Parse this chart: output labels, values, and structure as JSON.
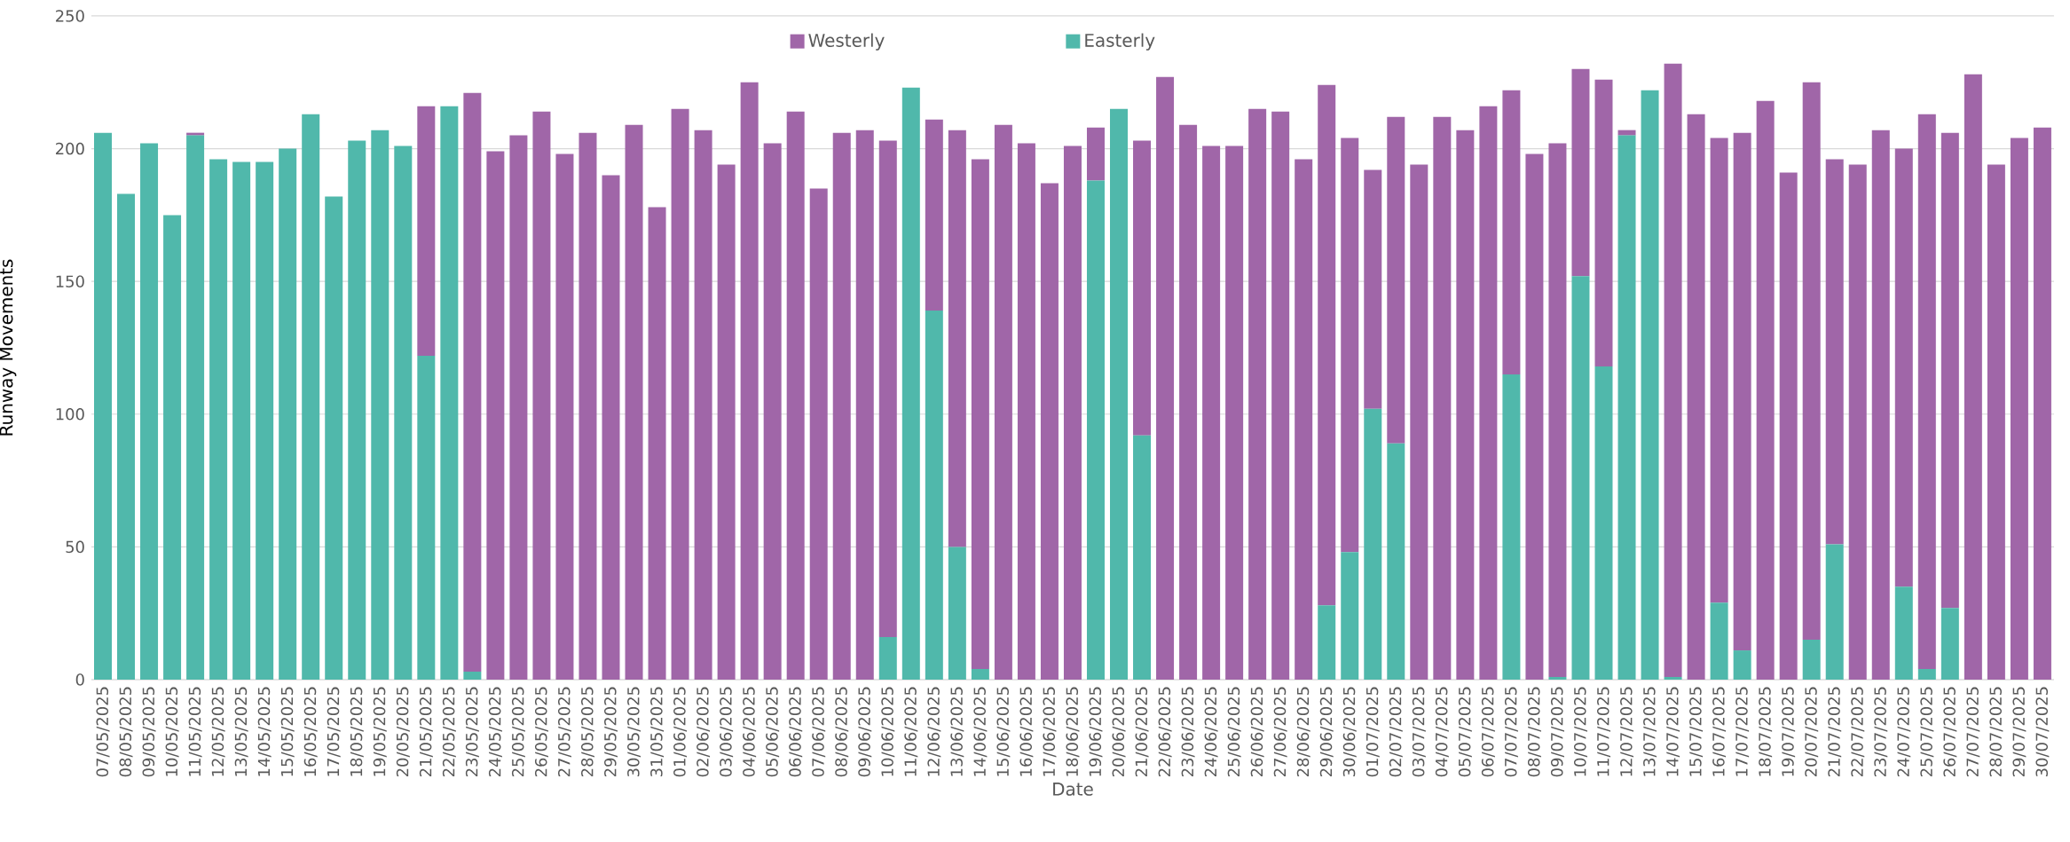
{
  "chart_data": {
    "type": "bar",
    "stacked": true,
    "xlabel": "Date",
    "ylabel": "Runway Movements",
    "legend": "top",
    "grid": "y",
    "ylim": [
      0,
      250
    ],
    "yticks": [
      0,
      50,
      100,
      150,
      200,
      250
    ],
    "categories": [
      "07/05/2025",
      "08/05/2025",
      "09/05/2025",
      "10/05/2025",
      "11/05/2025",
      "12/05/2025",
      "13/05/2025",
      "14/05/2025",
      "15/05/2025",
      "16/05/2025",
      "17/05/2025",
      "18/05/2025",
      "19/05/2025",
      "20/05/2025",
      "21/05/2025",
      "22/05/2025",
      "23/05/2025",
      "24/05/2025",
      "25/05/2025",
      "26/05/2025",
      "27/05/2025",
      "28/05/2025",
      "29/05/2025",
      "30/05/2025",
      "31/05/2025",
      "01/06/2025",
      "02/06/2025",
      "03/06/2025",
      "04/06/2025",
      "05/06/2025",
      "06/06/2025",
      "07/06/2025",
      "08/06/2025",
      "09/06/2025",
      "10/06/2025",
      "11/06/2025",
      "12/06/2025",
      "13/06/2025",
      "14/06/2025",
      "15/06/2025",
      "16/06/2025",
      "17/06/2025",
      "18/06/2025",
      "19/06/2025",
      "20/06/2025",
      "21/06/2025",
      "22/06/2025",
      "23/06/2025",
      "24/06/2025",
      "25/06/2025",
      "26/06/2025",
      "27/06/2025",
      "28/06/2025",
      "29/06/2025",
      "30/06/2025",
      "01/07/2025",
      "02/07/2025",
      "03/07/2025",
      "04/07/2025",
      "05/07/2025",
      "06/07/2025",
      "07/07/2025",
      "08/07/2025",
      "09/07/2025",
      "10/07/2025",
      "11/07/2025",
      "12/07/2025",
      "13/07/2025",
      "14/07/2025",
      "15/07/2025",
      "16/07/2025",
      "17/07/2025",
      "18/07/2025",
      "19/07/2025",
      "20/07/2025",
      "21/07/2025",
      "22/07/2025",
      "23/07/2025",
      "24/07/2025",
      "25/07/2025",
      "26/07/2025",
      "27/07/2025",
      "28/07/2025",
      "29/07/2025",
      "30/07/2025"
    ],
    "series": [
      {
        "name": "Easterly",
        "color": "#50b8ab",
        "values": [
          206,
          183,
          202,
          175,
          205,
          196,
          195,
          195,
          200,
          213,
          182,
          203,
          207,
          201,
          122,
          216,
          3,
          null,
          null,
          null,
          null,
          null,
          null,
          null,
          null,
          null,
          null,
          null,
          null,
          null,
          null,
          null,
          null,
          null,
          16,
          223,
          139,
          50,
          4,
          null,
          null,
          null,
          null,
          188,
          215,
          92,
          null,
          null,
          null,
          null,
          null,
          null,
          null,
          28,
          48,
          102,
          89,
          null,
          null,
          null,
          null,
          115,
          null,
          1,
          152,
          118,
          205,
          222,
          1,
          null,
          29,
          11,
          null,
          null,
          15,
          51,
          null,
          null,
          35,
          4,
          27,
          null,
          null,
          null,
          null
        ]
      },
      {
        "name": "Westerly",
        "color": "#a066a8",
        "values": [
          null,
          null,
          null,
          null,
          1,
          null,
          null,
          null,
          null,
          null,
          null,
          null,
          null,
          null,
          94,
          null,
          218,
          199,
          205,
          214,
          198,
          206,
          190,
          209,
          178,
          215,
          207,
          194,
          225,
          202,
          214,
          185,
          206,
          207,
          187,
          null,
          72,
          157,
          192,
          209,
          202,
          187,
          201,
          20,
          null,
          111,
          227,
          209,
          201,
          201,
          215,
          214,
          196,
          196,
          156,
          90,
          123,
          194,
          212,
          207,
          216,
          107,
          198,
          201,
          78,
          108,
          2,
          null,
          231,
          213,
          175,
          195,
          218,
          191,
          210,
          145,
          194,
          207,
          165,
          209,
          179,
          228,
          194,
          204,
          208
        ]
      }
    ]
  }
}
